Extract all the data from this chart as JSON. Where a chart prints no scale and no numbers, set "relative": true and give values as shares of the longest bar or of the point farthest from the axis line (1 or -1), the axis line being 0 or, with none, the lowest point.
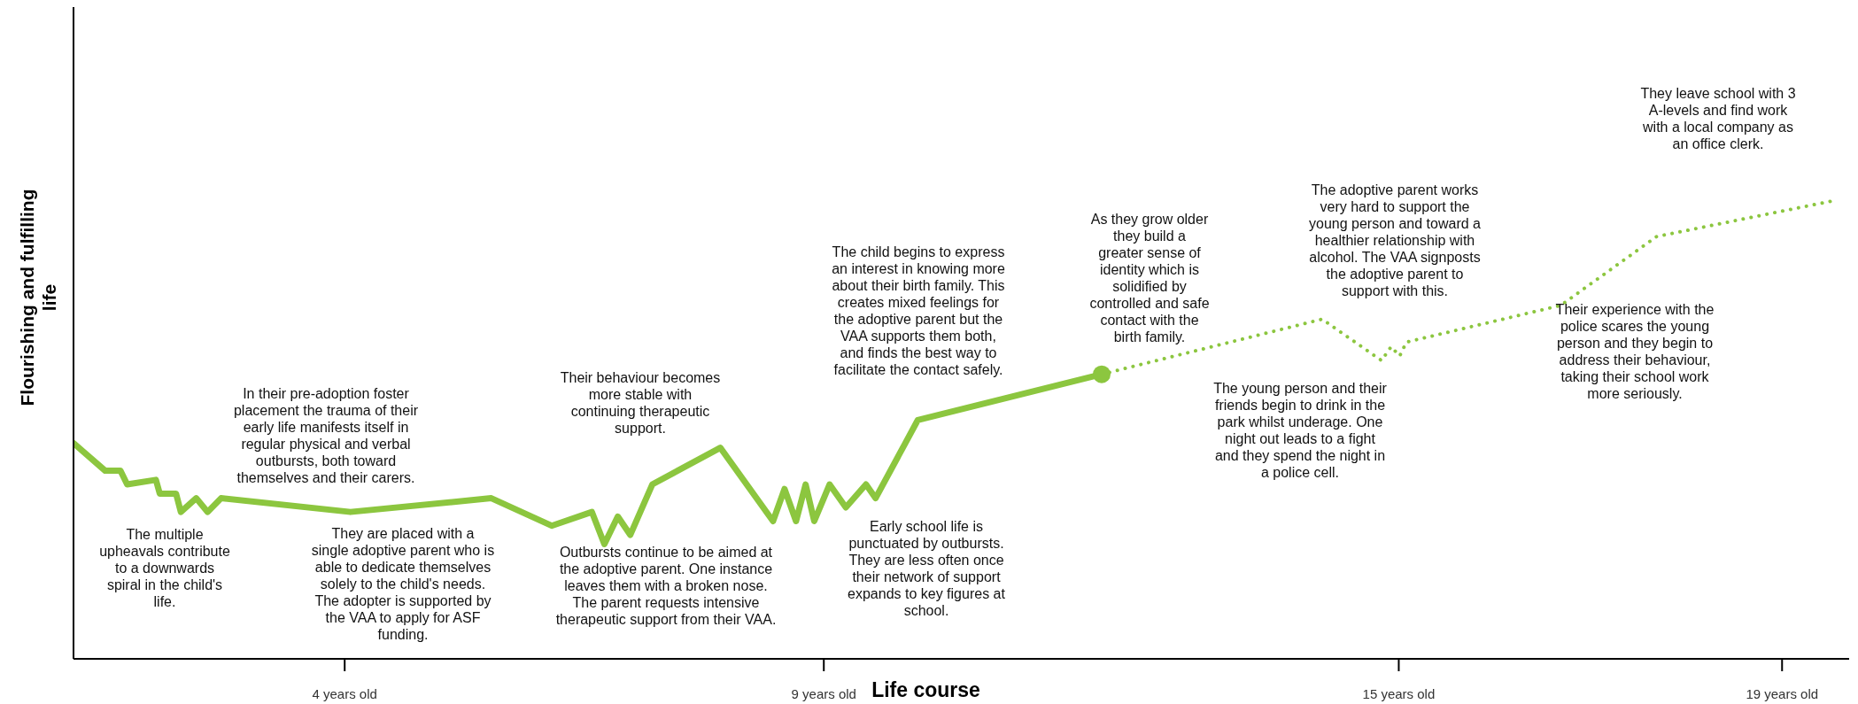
{
  "chart_data": {
    "type": "line",
    "relative": true,
    "xlabel": "Life course",
    "ylabel": "Flourishing and fulfilling\nlife",
    "xlim": [
      1.17,
      19.7
    ],
    "xticks": [
      {
        "value": 4,
        "label": "4 years old"
      },
      {
        "value": 9,
        "label": "9 years old"
      },
      {
        "value": 15,
        "label": "15 years old"
      },
      {
        "value": 19,
        "label": "19 years old"
      }
    ],
    "series": [
      {
        "line_style": "solid",
        "color": "#8cc63f",
        "x": [
          1.17,
          1.5,
          1.66,
          1.73,
          2.03,
          2.07,
          2.24,
          2.29,
          2.45,
          2.57,
          2.71,
          4.06,
          5.53,
          6.16,
          6.58,
          6.71,
          6.85,
          6.98,
          7.21,
          7.92,
          8.47,
          8.59,
          8.71,
          8.81,
          8.9,
          9.06,
          9.23,
          9.44,
          9.54,
          9.98,
          11.9
        ],
        "values": [
          0.47,
          0.41,
          0.41,
          0.38,
          0.39,
          0.36,
          0.36,
          0.32,
          0.35,
          0.32,
          0.35,
          0.32,
          0.35,
          0.29,
          0.32,
          0.25,
          0.31,
          0.27,
          0.38,
          0.46,
          0.3,
          0.37,
          0.3,
          0.38,
          0.3,
          0.38,
          0.33,
          0.38,
          0.35,
          0.52,
          0.62
        ]
      },
      {
        "line_style": "dotted",
        "color": "#8cc63f",
        "x": [
          11.9,
          14.2,
          14.82,
          14.92,
          15.01,
          15.08,
          16.69,
          17.69,
          19.58
        ],
        "values": [
          0.62,
          0.74,
          0.65,
          0.68,
          0.66,
          0.69,
          0.77,
          0.92,
          1.0
        ]
      },
      {
        "type": "scatter",
        "marker": "circle",
        "color": "#8cc63f",
        "x": [
          11.9
        ],
        "values": [
          0.62
        ]
      }
    ],
    "annotations": [
      "The multiple\nupheavals contribute\nto a downwards\nspiral in the child's\nlife.",
      "In their pre-adoption foster\nplacement the trauma of their\nearly life manifests itself in\nregular physical and verbal\noutbursts, both toward\nthemselves and their carers.",
      "They are placed with a\nsingle adoptive parent who is\nable to dedicate themselves\nsolely to the child's needs.\nThe adopter is supported by\nthe VAA to apply for ASF\nfunding.",
      "Their behaviour becomes\nmore stable with\ncontinuing therapeutic\nsupport.",
      "Outbursts continue to be aimed at\nthe adoptive parent. One instance\nleaves them with a broken nose.\nThe parent requests intensive\ntherapeutic support from their VAA.",
      "The child begins to express\nan interest in knowing more\nabout their birth family. This\ncreates mixed feelings for\nthe adoptive parent but the\nVAA supports them both,\nand finds the best way to\nfacilitate the contact safely.",
      "Early school life is\npunctuated by outbursts.\nThey are less often once\ntheir network of support\nexpands to key figures at\nschool.",
      "As they grow older\nthey build a\ngreater sense of\nidentity which is\nsolidified by\ncontrolled and safe\ncontact with the\nbirth family.",
      "The young person and their\nfriends begin to drink in the\npark whilst underage. One\nnight out leads to a fight\nand they spend the night in\na police cell.",
      "The adoptive parent works\nvery hard to support the\nyoung person and toward a\nhealthier relationship with\nalcohol. The VAA signposts\nthe adoptive parent to\nsupport with this.",
      "They leave school with 3\nA-levels and find work\nwith a local company as\nan office clerk.",
      "Their experience with the\npolice scares the young\nperson and they begin to\naddress their behaviour,\ntaking their school work\nmore seriously."
    ]
  }
}
